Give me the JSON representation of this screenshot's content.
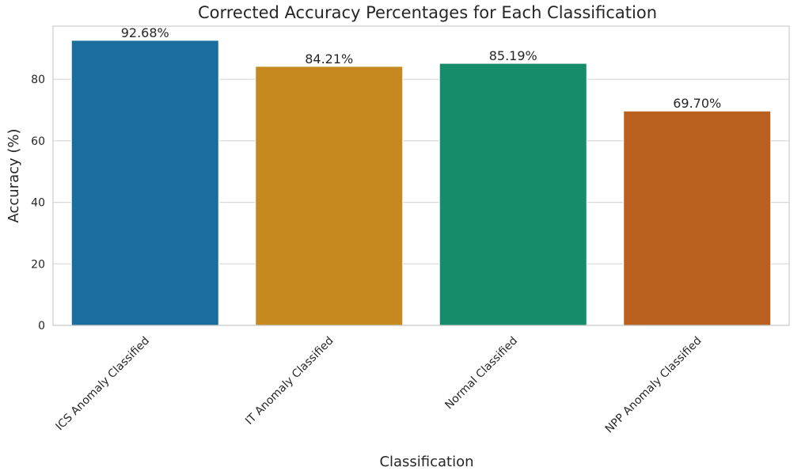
{
  "chart_data": {
    "type": "bar",
    "title": "Corrected Accuracy Percentages for Each Classification",
    "xlabel": "Classification",
    "ylabel": "Accuracy (%)",
    "categories": [
      "ICS Anomaly Classified",
      "IT Anomaly Classified",
      "Normal Classified",
      "NPP Anomaly Classified"
    ],
    "values": [
      92.68,
      84.21,
      85.19,
      69.7
    ],
    "data_labels": [
      "92.68%",
      "84.21%",
      "85.19%",
      "69.70%"
    ],
    "colors": [
      "#1a6e9e",
      "#c58920",
      "#168c6a",
      "#b9601e"
    ],
    "ylim": [
      0,
      97.3
    ],
    "yticks": [
      0,
      20,
      40,
      60,
      80
    ],
    "grid": true,
    "xtick_rotation": 45
  }
}
